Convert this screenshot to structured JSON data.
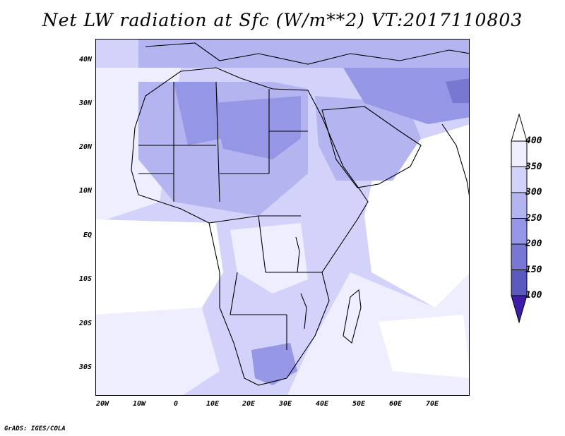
{
  "title": "Net LW radiation at Sfc (W/m**2) VT:2017110803",
  "footer": "GrADS: IGES/COLA",
  "y_axis": {
    "labels": [
      "40N",
      "30N",
      "20N",
      "10N",
      "EQ",
      "10S",
      "20S",
      "30S"
    ]
  },
  "x_axis": {
    "labels": [
      "20W",
      "10W",
      "0",
      "10E",
      "20E",
      "30E",
      "40E",
      "50E",
      "60E",
      "70E"
    ]
  },
  "colorbar": {
    "levels": [
      "400",
      "350",
      "300",
      "250",
      "200",
      "150",
      "100"
    ],
    "colors": [
      "#eeeeff",
      "#d2d2fa",
      "#b4b4f0",
      "#9696e6",
      "#7878d2",
      "#5a5abe",
      "#3c1eaa"
    ],
    "top_arrow_color": "#ffffff",
    "bottom_arrow_color": "#3c1eaa"
  },
  "map": {
    "lon_range": [
      -22,
      80
    ],
    "lat_range": [
      -37,
      45
    ],
    "background_color": "#d2d2fa",
    "field_colors": {
      "ocean_high": "#ffffff",
      "ocean": "#eeeeff",
      "land_mid": "#d2d2fa",
      "sahara": "#b4b4f0",
      "desert_core": "#9696e6"
    }
  }
}
